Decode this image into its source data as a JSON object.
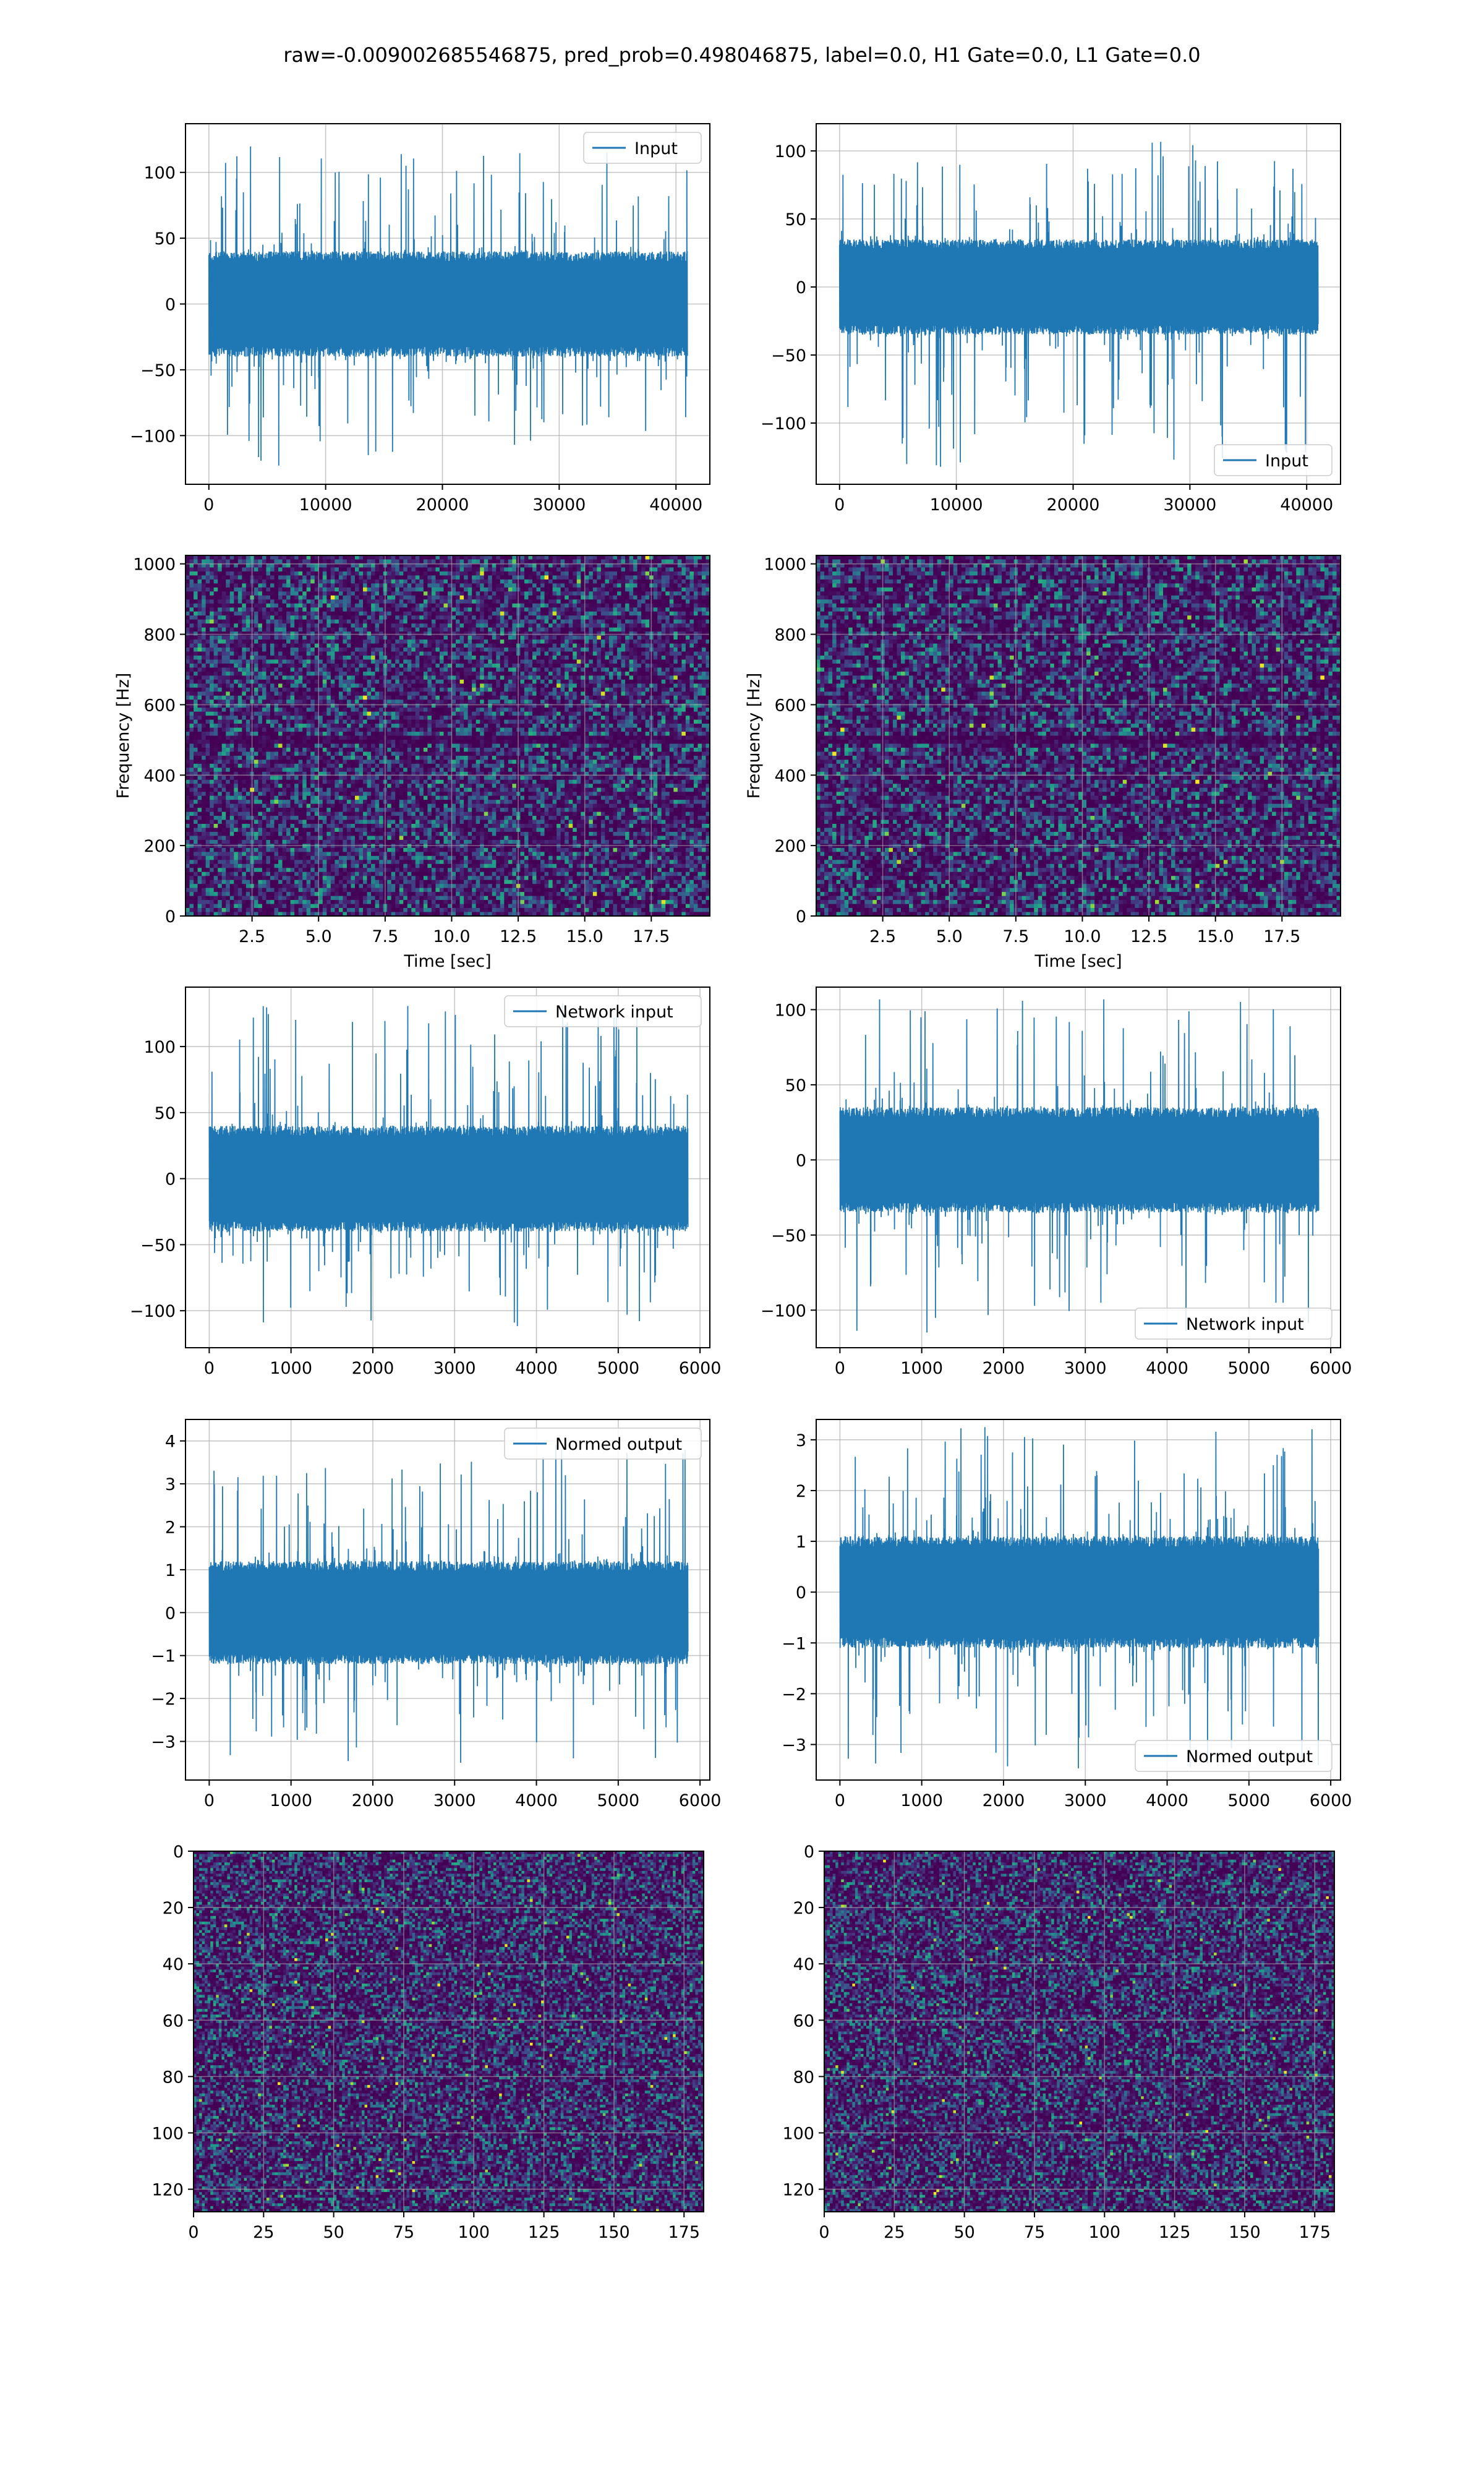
{
  "figure": {
    "suptitle": "raw=-0.009002685546875, pred_prob=0.498046875, label=0.0, H1 Gate=0.0, L1 Gate=0.0"
  },
  "colors": {
    "line": "#1f77b4",
    "grid": "#b0b0b0",
    "viridis": [
      "#440154",
      "#482878",
      "#3e4989",
      "#31688e",
      "#26828e",
      "#1f9e89",
      "#35b779",
      "#6ece58",
      "#b5de2b",
      "#fde725"
    ]
  },
  "chart_data": [
    {
      "id": "input-h1",
      "type": "line",
      "legend": "Input",
      "legend_loc": "upper right",
      "xlim": [
        -2000,
        42900
      ],
      "ylim": [
        -137,
        137
      ],
      "xticks": [
        0,
        10000,
        20000,
        30000,
        40000
      ],
      "yticks": [
        -100,
        -50,
        0,
        50,
        100
      ],
      "grid": true,
      "series": [
        {
          "x_start": 0,
          "x_end": 40960,
          "body_range": [
            -40,
            40
          ],
          "peak_range": [
            -125,
            123
          ]
        }
      ]
    },
    {
      "id": "input-l1",
      "type": "line",
      "legend": "Input",
      "legend_loc": "lower right",
      "xlim": [
        -2000,
        42900
      ],
      "ylim": [
        -145,
        120
      ],
      "xticks": [
        0,
        10000,
        20000,
        30000,
        40000
      ],
      "yticks": [
        -100,
        -50,
        0,
        50,
        100
      ],
      "grid": true,
      "series": [
        {
          "x_start": 0,
          "x_end": 40960,
          "body_range": [
            -35,
            35
          ],
          "peak_range": [
            -133,
            107
          ]
        }
      ]
    },
    {
      "id": "spectrogram-h1",
      "type": "heatmap",
      "colormap": "viridis",
      "xlabel": "Time [sec]",
      "ylabel": "Frequency [Hz]",
      "xlim": [
        0,
        19.7
      ],
      "ylim": [
        0,
        1024
      ],
      "xticks": [
        2.5,
        5.0,
        7.5,
        10.0,
        12.5,
        15.0,
        17.5
      ],
      "xtick_labels": [
        "2.5",
        "5.0",
        "7.5",
        "10.0",
        "12.5",
        "15.0",
        "17.5"
      ],
      "yticks": [
        0,
        200,
        400,
        600,
        800,
        1000
      ],
      "grid": true,
      "dark_band_hz": 500,
      "seed": 11
    },
    {
      "id": "spectrogram-l1",
      "type": "heatmap",
      "colormap": "viridis",
      "xlabel": "Time [sec]",
      "ylabel": "Frequency [Hz]",
      "xlim": [
        0,
        19.7
      ],
      "ylim": [
        0,
        1024
      ],
      "xticks": [
        2.5,
        5.0,
        7.5,
        10.0,
        12.5,
        15.0,
        17.5
      ],
      "xtick_labels": [
        "2.5",
        "5.0",
        "7.5",
        "10.0",
        "12.5",
        "15.0",
        "17.5"
      ],
      "yticks": [
        0,
        200,
        400,
        600,
        800,
        1000
      ],
      "grid": true,
      "dark_band_hz": 500,
      "seed": 23
    },
    {
      "id": "network-input-h1",
      "type": "line",
      "legend": "Network input",
      "legend_loc": "upper right",
      "xlim": [
        -290,
        6120
      ],
      "ylim": [
        -128,
        145
      ],
      "xticks": [
        0,
        1000,
        2000,
        3000,
        4000,
        5000,
        6000
      ],
      "yticks": [
        -100,
        -50,
        0,
        50,
        100
      ],
      "grid": true,
      "series": [
        {
          "x_start": 0,
          "x_end": 5850,
          "body_range": [
            -40,
            40
          ],
          "peak_range": [
            -113,
            133
          ]
        }
      ]
    },
    {
      "id": "network-input-l1",
      "type": "line",
      "legend": "Network input",
      "legend_loc": "lower right",
      "xlim": [
        -290,
        6120
      ],
      "ylim": [
        -125,
        115
      ],
      "xticks": [
        0,
        1000,
        2000,
        3000,
        4000,
        5000,
        6000
      ],
      "yticks": [
        -100,
        -50,
        0,
        50,
        100
      ],
      "grid": true,
      "series": [
        {
          "x_start": 0,
          "x_end": 5850,
          "body_range": [
            -35,
            35
          ],
          "peak_range": [
            -115,
            107
          ]
        }
      ]
    },
    {
      "id": "normed-output-h1",
      "type": "line",
      "legend": "Normed output",
      "legend_loc": "upper right",
      "xlim": [
        -290,
        6120
      ],
      "ylim": [
        -3.9,
        4.5
      ],
      "xticks": [
        0,
        1000,
        2000,
        3000,
        4000,
        5000,
        6000
      ],
      "yticks": [
        -3,
        -2,
        -1,
        0,
        1,
        2,
        3,
        4
      ],
      "grid": true,
      "series": [
        {
          "x_start": 0,
          "x_end": 5850,
          "body_range": [
            -1.2,
            1.2
          ],
          "peak_range": [
            -3.5,
            4.1
          ]
        }
      ]
    },
    {
      "id": "normed-output-l1",
      "type": "line",
      "legend": "Normed output",
      "legend_loc": "lower right",
      "xlim": [
        -290,
        6120
      ],
      "ylim": [
        -3.7,
        3.4
      ],
      "xticks": [
        0,
        1000,
        2000,
        3000,
        4000,
        5000,
        6000
      ],
      "yticks": [
        -3,
        -2,
        -1,
        0,
        1,
        2,
        3
      ],
      "grid": true,
      "series": [
        {
          "x_start": 0,
          "x_end": 5850,
          "body_range": [
            -1.1,
            1.1
          ],
          "peak_range": [
            -3.5,
            3.35
          ]
        }
      ]
    },
    {
      "id": "image-h1",
      "type": "heatmap",
      "colormap": "viridis",
      "origin": "upper",
      "xlim": [
        0,
        182
      ],
      "ylim": [
        128,
        0
      ],
      "xticks": [
        0,
        25,
        50,
        75,
        100,
        125,
        150,
        175
      ],
      "yticks": [
        0,
        20,
        40,
        60,
        80,
        100,
        120
      ],
      "grid": true,
      "seed": 37
    },
    {
      "id": "image-l1",
      "type": "heatmap",
      "colormap": "viridis",
      "origin": "upper",
      "xlim": [
        0,
        182
      ],
      "ylim": [
        128,
        0
      ],
      "xticks": [
        0,
        25,
        50,
        75,
        100,
        125,
        150,
        175
      ],
      "yticks": [
        0,
        20,
        40,
        60,
        80,
        100,
        120
      ],
      "grid": true,
      "seed": 53
    }
  ]
}
